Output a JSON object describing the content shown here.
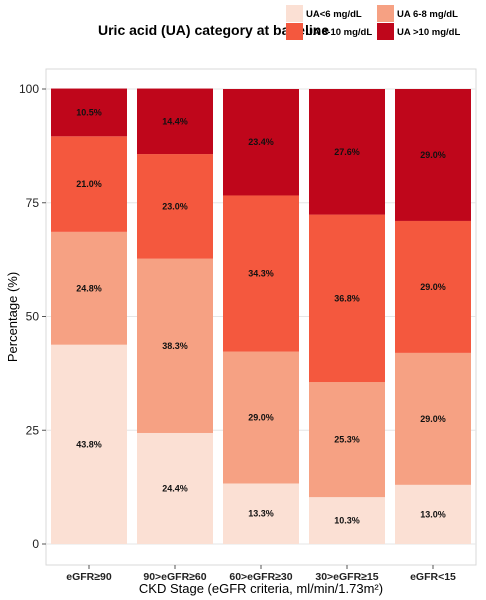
{
  "chart_data": {
    "type": "bar",
    "stacked": true,
    "categories": [
      "eGFR≥90",
      "90>eGFR≥60",
      "60>eGFR≥30",
      "30>eGFR≥15",
      "eGFR<15"
    ],
    "series": [
      {
        "name": "UA<6 mg/dL",
        "color": "#fbe0d4",
        "values": [
          43.8,
          24.4,
          13.3,
          10.3,
          13.0
        ],
        "labels": [
          "43.8%",
          "24.4%",
          "13.3%",
          "10.3%",
          "13.0%"
        ]
      },
      {
        "name": "UA 6-8 mg/dL",
        "color": "#f6a183",
        "values": [
          24.8,
          38.3,
          29.0,
          25.3,
          29.0
        ],
        "labels": [
          "24.8%",
          "38.3%",
          "29.0%",
          "25.3%",
          "29.0%"
        ]
      },
      {
        "name": "UA 8-10 mg/dL",
        "color": "#f4583e",
        "values": [
          21.0,
          23.0,
          34.3,
          36.8,
          29.0
        ],
        "labels": [
          "21.0%",
          "23.0%",
          "34.3%",
          "36.8%",
          "29.0%"
        ]
      },
      {
        "name": "UA >10 mg/dL",
        "color": "#bf061b",
        "values": [
          10.5,
          14.4,
          23.4,
          27.6,
          29.0
        ],
        "labels": [
          "10.5%",
          "14.4%",
          "23.4%",
          "27.6%",
          "29.0%"
        ]
      }
    ],
    "legend_title": "Uric acid (UA) category at baseline",
    "legend_position": "top",
    "xlabel": "CKD Stage (eGFR criteria, ml/min/1.73m²)",
    "ylabel": "Percentage (%)",
    "ylim": [
      0,
      100
    ],
    "yticks": [
      0,
      25,
      50,
      75,
      100
    ],
    "ytick_labels": [
      "0",
      "25",
      "50",
      "75",
      "100"
    ],
    "grid": true
  }
}
